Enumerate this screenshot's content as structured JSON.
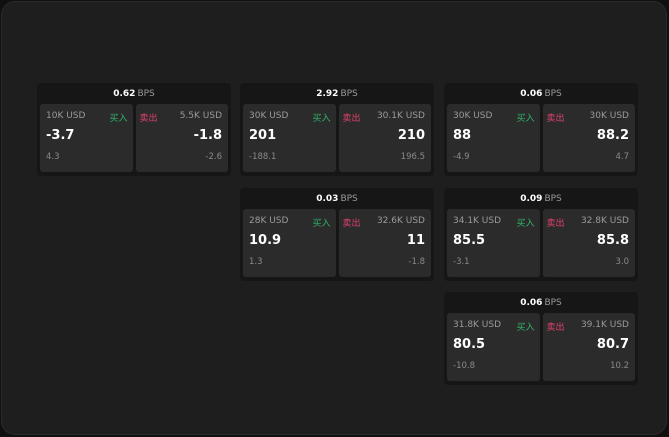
{
  "labels": {
    "unit": "BPS",
    "buy": "买入",
    "sell": "卖出"
  },
  "colors": {
    "buy": "#2fb36a",
    "sell": "#e0406a",
    "card": "#2b2b2b",
    "panel": "#161616"
  },
  "panels": [
    {
      "spread": "0.62",
      "buy": {
        "size": "10K USD",
        "price": "-3.7",
        "change": "4.3"
      },
      "sell": {
        "size": "5.5K USD",
        "price": "-1.8",
        "change": "-2.6"
      }
    },
    {
      "spread": "2.92",
      "buy": {
        "size": "30K USD",
        "price": "201",
        "change": "-188.1"
      },
      "sell": {
        "size": "30.1K USD",
        "price": "210",
        "change": "196.5"
      }
    },
    {
      "spread": "0.06",
      "buy": {
        "size": "30K USD",
        "price": "88",
        "change": "-4.9"
      },
      "sell": {
        "size": "30K USD",
        "price": "88.2",
        "change": "4.7"
      }
    },
    {
      "spread": "0.03",
      "buy": {
        "size": "28K USD",
        "price": "10.9",
        "change": "1.3"
      },
      "sell": {
        "size": "32.6K USD",
        "price": "11",
        "change": "-1.8"
      }
    },
    {
      "spread": "0.09",
      "buy": {
        "size": "34.1K USD",
        "price": "85.5",
        "change": "-3.1"
      },
      "sell": {
        "size": "32.8K USD",
        "price": "85.8",
        "change": "3.0"
      }
    },
    {
      "spread": "0.06",
      "buy": {
        "size": "31.8K USD",
        "price": "80.5",
        "change": "-10.8"
      },
      "sell": {
        "size": "39.1K USD",
        "price": "80.7",
        "change": "10.2"
      }
    }
  ]
}
